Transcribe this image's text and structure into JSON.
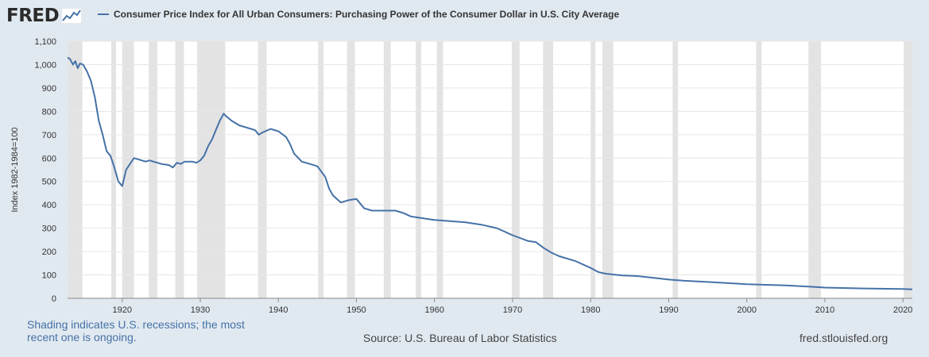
{
  "header": {
    "logo_text": "FRED",
    "logo_icon": "line-chart-icon"
  },
  "footer": {
    "note": "Shading indicates U.S. recessions; the most recent one is ongoing.",
    "source": "Source: U.S. Bureau of Labor Statistics",
    "site": "fred.stlouisfed.org"
  },
  "colors": {
    "background": "#e1e9f0",
    "plot_background": "#ffffff",
    "series": "#4572a7",
    "recession": "#e3e3e3"
  },
  "chart_data": {
    "type": "line",
    "title": "",
    "xlabel": "",
    "ylabel": "Index 1982-1984=100",
    "xlim": [
      1913,
      2021.2
    ],
    "ylim": [
      0,
      1100
    ],
    "x_ticks": [
      1920,
      1930,
      1940,
      1950,
      1960,
      1970,
      1980,
      1990,
      2000,
      2010,
      2020
    ],
    "y_ticks": [
      0,
      100,
      200,
      300,
      400,
      500,
      600,
      700,
      800,
      900,
      1000,
      1100
    ],
    "grid": "horizontal",
    "legend": "top-left",
    "recessions": [
      [
        1913.0,
        1914.9
      ],
      [
        1918.6,
        1919.2
      ],
      [
        1920.0,
        1921.5
      ],
      [
        1923.4,
        1924.5
      ],
      [
        1926.8,
        1927.9
      ],
      [
        1929.6,
        1933.2
      ],
      [
        1937.4,
        1938.5
      ],
      [
        1945.1,
        1945.8
      ],
      [
        1948.8,
        1949.8
      ],
      [
        1953.5,
        1954.4
      ],
      [
        1957.6,
        1958.3
      ],
      [
        1960.3,
        1961.1
      ],
      [
        1969.9,
        1970.9
      ],
      [
        1973.9,
        1975.2
      ],
      [
        1980.0,
        1980.6
      ],
      [
        1981.5,
        1982.9
      ],
      [
        1990.5,
        1991.2
      ],
      [
        2001.2,
        2001.9
      ],
      [
        2007.9,
        2009.5
      ],
      [
        2020.1,
        2021.2
      ]
    ],
    "series": [
      {
        "name": "Consumer Price Index for All Urban Consumers: Purchasing Power of the Consumer Dollar in U.S. City Average",
        "x": [
          1913,
          1913.3,
          1913.7,
          1914,
          1914.3,
          1914.6,
          1915,
          1915.5,
          1916,
          1916.5,
          1917,
          1917.5,
          1918,
          1918.5,
          1919,
          1919.5,
          1920,
          1920.5,
          1921,
          1921.5,
          1922,
          1922.5,
          1923,
          1923.5,
          1924,
          1925,
          1926,
          1926.5,
          1927,
          1927.5,
          1928,
          1929,
          1929.5,
          1930,
          1930.5,
          1931,
          1931.5,
          1932,
          1932.5,
          1933,
          1933.3,
          1934,
          1935,
          1936,
          1937,
          1937.5,
          1938,
          1939,
          1940,
          1941,
          1941.5,
          1942,
          1943,
          1944,
          1945,
          1946,
          1946.5,
          1947,
          1948,
          1949,
          1950,
          1950.5,
          1951,
          1952,
          1953,
          1955,
          1956,
          1957,
          1958,
          1959,
          1960,
          1962,
          1964,
          1966,
          1968,
          1970,
          1972,
          1973,
          1974,
          1975,
          1976,
          1978,
          1980,
          1981,
          1982,
          1984,
          1986,
          1988,
          1990,
          1992,
          1995,
          2000,
          2005,
          2008,
          2010,
          2015,
          2020,
          2021.2
        ],
        "values": [
          1030,
          1025,
          1000,
          1015,
          985,
          1005,
          1000,
          970,
          930,
          860,
          760,
          700,
          630,
          610,
          560,
          500,
          480,
          550,
          575,
          600,
          595,
          590,
          585,
          590,
          585,
          575,
          570,
          560,
          580,
          575,
          585,
          585,
          580,
          590,
          610,
          650,
          680,
          720,
          760,
          790,
          780,
          760,
          740,
          730,
          720,
          700,
          710,
          725,
          715,
          690,
          660,
          620,
          585,
          575,
          565,
          520,
          470,
          440,
          410,
          420,
          425,
          405,
          385,
          375,
          375,
          375,
          365,
          350,
          345,
          340,
          335,
          330,
          325,
          315,
          300,
          270,
          245,
          240,
          215,
          195,
          180,
          160,
          130,
          112,
          105,
          98,
          95,
          88,
          80,
          75,
          70,
          60,
          55,
          50,
          46,
          42,
          40,
          38
        ]
      }
    ]
  }
}
